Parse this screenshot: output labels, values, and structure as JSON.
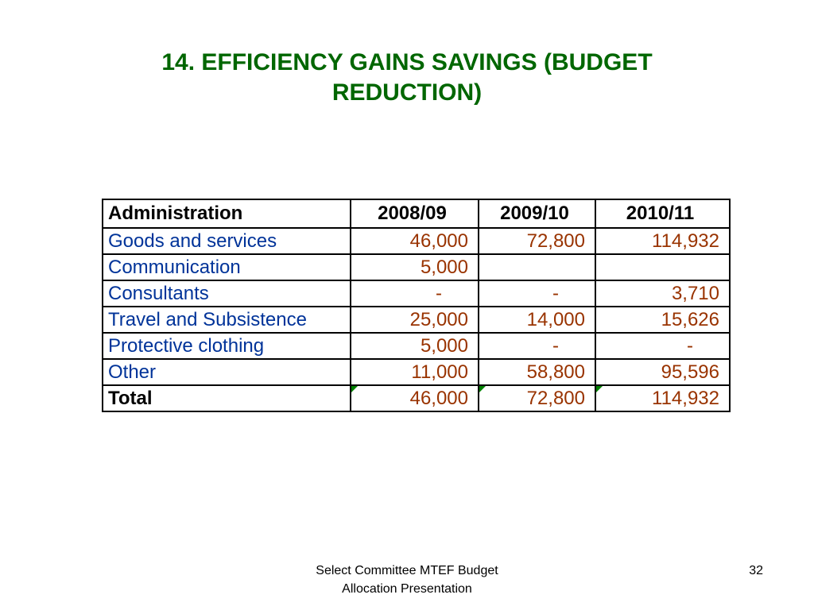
{
  "title": {
    "line1": "14. EFFICIENCY GAINS SAVINGS (BUDGET",
    "line2": "REDUCTION)"
  },
  "table": {
    "header": {
      "label": "Administration",
      "years": [
        "2008/09",
        "2009/10",
        "2010/11"
      ]
    },
    "rows": [
      {
        "label": "Goods and services",
        "values": [
          "46,000",
          "72,800",
          "114,932"
        ]
      },
      {
        "label": "Communication",
        "values": [
          "5,000",
          "",
          ""
        ]
      },
      {
        "label": "Consultants",
        "values": [
          "-",
          "-",
          "3,710"
        ]
      },
      {
        "label": "Travel and Subsistence",
        "values": [
          "25,000",
          "14,000",
          "15,626"
        ]
      },
      {
        "label": "Protective clothing",
        "values": [
          "5,000",
          "-",
          "-"
        ]
      },
      {
        "label": "Other",
        "values": [
          "11,000",
          "58,800",
          "95,596"
        ]
      }
    ],
    "total": {
      "label": "Total",
      "values": [
        "46,000",
        "72,800",
        "114,932"
      ]
    }
  },
  "footer": {
    "line1": "Select Committee MTEF  Budget",
    "line2": "Allocation Presentation"
  },
  "page_number": "32",
  "colors": {
    "title": "#006600",
    "labels": "#003399",
    "values": "#993300",
    "marker": "#008000"
  }
}
